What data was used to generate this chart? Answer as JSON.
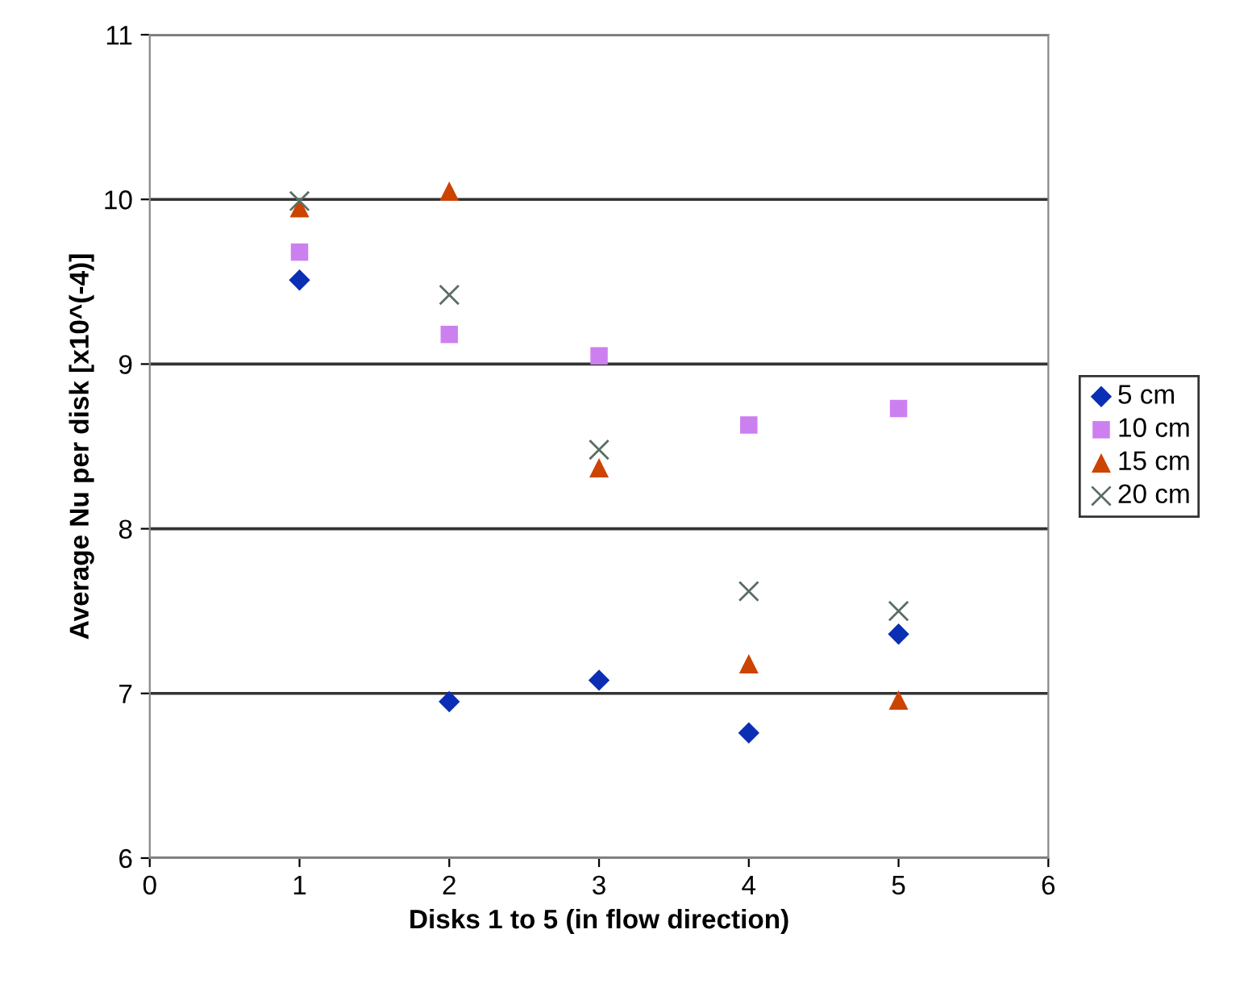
{
  "chart_data": {
    "type": "scatter",
    "xlabel": "Disks 1 to 5 (in flow direction)",
    "ylabel": "Average Nu per disk [x10^(-4)]",
    "x": [
      1,
      2,
      3,
      4,
      5
    ],
    "series": [
      {
        "name": "5 cm",
        "color": "#0a2fb4",
        "marker": "diamond",
        "values": [
          9.51,
          6.95,
          7.08,
          6.76,
          7.36
        ]
      },
      {
        "name": "10 cm",
        "color": "#cc80f0",
        "marker": "square",
        "values": [
          9.68,
          9.18,
          9.05,
          8.63,
          8.73
        ]
      },
      {
        "name": "15 cm",
        "color": "#cc4400",
        "marker": "triangle",
        "values": [
          9.95,
          10.05,
          8.37,
          7.18,
          6.96
        ]
      },
      {
        "name": "20 cm",
        "color": "#5a6e64",
        "marker": "cross",
        "values": [
          9.99,
          9.42,
          8.48,
          7.62,
          7.5
        ]
      }
    ],
    "xlim": [
      0,
      6
    ],
    "ylim": [
      6,
      11
    ],
    "xticks": [
      0,
      1,
      2,
      3,
      4,
      5,
      6
    ],
    "yticks": [
      6,
      7,
      8,
      9,
      10,
      11
    ],
    "grid": "y",
    "legend": "right"
  }
}
